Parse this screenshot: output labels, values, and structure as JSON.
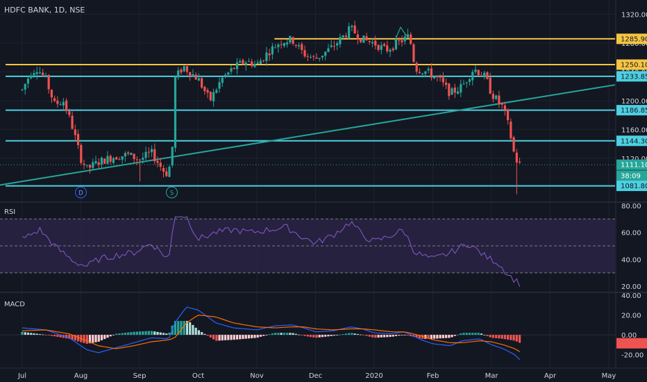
{
  "header": {
    "symbol": "HDFC BANK, 1D, NSE"
  },
  "colors": {
    "background": "#131722",
    "grid": "#1e222d",
    "axis_text": "#d1d4dc",
    "up": "#26a69a",
    "down": "#ef5350",
    "level_cyan": "#4dd0e1",
    "level_yellow": "#f5c542",
    "trendline": "#26a69a",
    "rsi_line": "#7e57c2",
    "rsi_band": "#2a2344",
    "macd_line": "#2962ff",
    "signal_line": "#ff6d00"
  },
  "chart_data": [
    {
      "type": "candlestick",
      "title": "HDFC BANK, 1D, NSE",
      "x_ticks": [
        "Jul",
        "Aug",
        "Sep",
        "Oct",
        "Nov",
        "Dec",
        "2020",
        "Feb",
        "Mar",
        "Apr",
        "May"
      ],
      "y_ticks": [
        1320,
        1280,
        1240,
        1200,
        1160,
        1120
      ],
      "ylim": [
        1065,
        1335
      ],
      "price_labels": [
        {
          "text": "1285.90",
          "value": 1285.9,
          "color": "level_yellow"
        },
        {
          "text": "1250.10",
          "value": 1250.1,
          "color": "level_yellow"
        },
        {
          "text": "1233.85",
          "value": 1233.85,
          "color": "level_cyan"
        },
        {
          "text": "1186.85",
          "value": 1186.85,
          "color": "level_cyan"
        },
        {
          "text": "1144.30",
          "value": 1144.3,
          "color": "level_cyan"
        },
        {
          "text": "1111.10",
          "value": 1111.1,
          "color": "up"
        },
        {
          "text": "38:09",
          "value": 1096,
          "color": "up"
        },
        {
          "text": "1081.80",
          "value": 1081.8,
          "color": "level_cyan"
        }
      ],
      "levels": [
        {
          "value": 1285.9,
          "color": "level_yellow",
          "from": "Nov 2019"
        },
        {
          "value": 1250.1,
          "color": "level_yellow",
          "from": "Jul 2019"
        },
        {
          "value": 1233.85,
          "color": "level_cyan",
          "from": "Jul 2019"
        },
        {
          "value": 1186.85,
          "color": "level_cyan",
          "from": "Jul 2019"
        },
        {
          "value": 1144.3,
          "color": "level_cyan",
          "from": "Jul 2019"
        },
        {
          "value": 1081.8,
          "color": "level_cyan",
          "from": "Jul 2019"
        }
      ],
      "markers": [
        {
          "text": "D",
          "month": 1.0
        },
        {
          "text": "S",
          "month": 2.55
        }
      ],
      "anchors": [
        [
          0,
          1215
        ],
        [
          0.15,
          1240
        ],
        [
          0.25,
          1245
        ],
        [
          0.4,
          1230
        ],
        [
          0.55,
          1195
        ],
        [
          0.7,
          1200
        ],
        [
          0.85,
          1165
        ],
        [
          1.0,
          1120
        ],
        [
          1.1,
          1105
        ],
        [
          1.3,
          1115
        ],
        [
          1.55,
          1122
        ],
        [
          1.8,
          1125
        ],
        [
          2.0,
          1118
        ],
        [
          2.2,
          1128
        ],
        [
          2.45,
          1098
        ],
        [
          2.55,
          1115
        ],
        [
          2.6,
          1230
        ],
        [
          2.75,
          1248
        ],
        [
          2.85,
          1240
        ],
        [
          3.0,
          1230
        ],
        [
          3.2,
          1200
        ],
        [
          3.4,
          1230
        ],
        [
          3.6,
          1245
        ],
        [
          3.8,
          1255
        ],
        [
          4.0,
          1250
        ],
        [
          4.2,
          1268
        ],
        [
          4.4,
          1282
        ],
        [
          4.6,
          1285
        ],
        [
          4.8,
          1265
        ],
        [
          5.0,
          1258
        ],
        [
          5.3,
          1275
        ],
        [
          5.6,
          1300
        ],
        [
          5.8,
          1285
        ],
        [
          6.0,
          1280
        ],
        [
          6.2,
          1270
        ],
        [
          6.5,
          1285
        ],
        [
          6.6,
          1290
        ],
        [
          6.7,
          1245
        ],
        [
          6.9,
          1240
        ],
        [
          7.1,
          1230
        ],
        [
          7.3,
          1210
        ],
        [
          7.5,
          1220
        ],
        [
          7.7,
          1245
        ],
        [
          7.9,
          1232
        ],
        [
          8.0,
          1210
        ],
        [
          8.2,
          1190
        ],
        [
          8.3,
          1162
        ],
        [
          8.4,
          1120
        ],
        [
          8.48,
          1111
        ]
      ]
    },
    {
      "type": "line",
      "title": "RSI",
      "y_ticks": [
        80,
        60,
        40,
        20
      ],
      "ylim": [
        16,
        82
      ],
      "band": [
        30,
        70
      ],
      "midline": 50,
      "anchors": [
        [
          0,
          55
        ],
        [
          0.3,
          62
        ],
        [
          0.6,
          48
        ],
        [
          0.9,
          38
        ],
        [
          1.1,
          35
        ],
        [
          1.3,
          40
        ],
        [
          1.6,
          43
        ],
        [
          1.9,
          45
        ],
        [
          2.2,
          52
        ],
        [
          2.5,
          40
        ],
        [
          2.6,
          73
        ],
        [
          2.8,
          72
        ],
        [
          3.0,
          55
        ],
        [
          3.3,
          60
        ],
        [
          3.6,
          62
        ],
        [
          3.9,
          60
        ],
        [
          4.2,
          62
        ],
        [
          4.5,
          64
        ],
        [
          4.8,
          56
        ],
        [
          5.0,
          52
        ],
        [
          5.3,
          58
        ],
        [
          5.6,
          68
        ],
        [
          5.8,
          58
        ],
        [
          6.0,
          53
        ],
        [
          6.3,
          58
        ],
        [
          6.5,
          62
        ],
        [
          6.7,
          45
        ],
        [
          7.0,
          40
        ],
        [
          7.3,
          45
        ],
        [
          7.6,
          52
        ],
        [
          7.9,
          42
        ],
        [
          8.1,
          38
        ],
        [
          8.3,
          28
        ],
        [
          8.48,
          22
        ]
      ]
    },
    {
      "type": "line",
      "title": "MACD",
      "y_ticks": [
        40,
        20,
        0,
        -20
      ],
      "ylim": [
        -30,
        42
      ],
      "hist_max": 14,
      "macd_anchors": [
        [
          0,
          7
        ],
        [
          0.4,
          5
        ],
        [
          0.8,
          -3
        ],
        [
          1.1,
          -15
        ],
        [
          1.3,
          -18
        ],
        [
          1.6,
          -13
        ],
        [
          1.9,
          -8
        ],
        [
          2.2,
          -3
        ],
        [
          2.5,
          -4
        ],
        [
          2.6,
          12
        ],
        [
          2.8,
          28
        ],
        [
          3.0,
          25
        ],
        [
          3.3,
          12
        ],
        [
          3.6,
          7
        ],
        [
          4.0,
          5
        ],
        [
          4.3,
          9
        ],
        [
          4.6,
          10
        ],
        [
          4.8,
          7
        ],
        [
          5.0,
          3
        ],
        [
          5.3,
          4
        ],
        [
          5.6,
          8
        ],
        [
          5.8,
          6
        ],
        [
          6.0,
          2
        ],
        [
          6.3,
          1
        ],
        [
          6.5,
          3
        ],
        [
          6.6,
          1
        ],
        [
          6.8,
          -5
        ],
        [
          7.0,
          -9
        ],
        [
          7.3,
          -11
        ],
        [
          7.5,
          -6
        ],
        [
          7.8,
          -4
        ],
        [
          8.0,
          -10
        ],
        [
          8.2,
          -14
        ],
        [
          8.4,
          -20
        ],
        [
          8.48,
          -25
        ]
      ],
      "signal_anchors": [
        [
          0,
          4
        ],
        [
          0.4,
          5
        ],
        [
          0.8,
          1
        ],
        [
          1.1,
          -6
        ],
        [
          1.3,
          -11
        ],
        [
          1.6,
          -14
        ],
        [
          1.9,
          -11
        ],
        [
          2.2,
          -7
        ],
        [
          2.5,
          -5
        ],
        [
          2.6,
          -3
        ],
        [
          2.8,
          12
        ],
        [
          3.0,
          20
        ],
        [
          3.3,
          18
        ],
        [
          3.6,
          12
        ],
        [
          4.0,
          8
        ],
        [
          4.3,
          7
        ],
        [
          4.6,
          8
        ],
        [
          4.8,
          8
        ],
        [
          5.0,
          6
        ],
        [
          5.3,
          5
        ],
        [
          5.6,
          6
        ],
        [
          5.8,
          6
        ],
        [
          6.0,
          5
        ],
        [
          6.3,
          3
        ],
        [
          6.5,
          3
        ],
        [
          6.6,
          2
        ],
        [
          6.8,
          -1
        ],
        [
          7.0,
          -5
        ],
        [
          7.3,
          -8
        ],
        [
          7.5,
          -8
        ],
        [
          7.8,
          -6
        ],
        [
          8.0,
          -7
        ],
        [
          8.2,
          -10
        ],
        [
          8.4,
          -14
        ],
        [
          8.48,
          -17
        ]
      ]
    }
  ]
}
